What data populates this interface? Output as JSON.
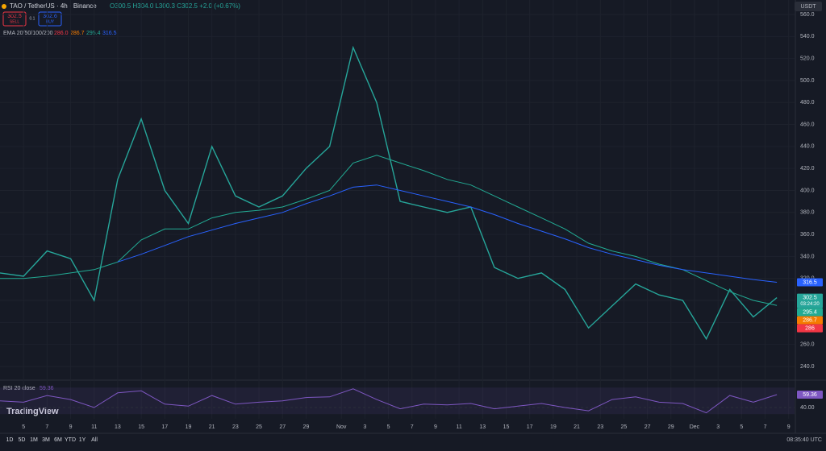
{
  "header": {
    "symbol": "TAO / TetherUS · 4h · Binance",
    "ohlc": "O300.5 H304.0 L300.3 C302.5 +2.0 (+0.67%)",
    "sell_price": "302.5",
    "sell": "SELL",
    "spread": "0.1",
    "buy_price": "302.6",
    "buy": "BUY",
    "ema_label": "EMA 20/50/100/200",
    "ema_values": [
      "286.0",
      "286.7",
      "295.4",
      "316.5"
    ],
    "currency": "USDT"
  },
  "chart_data": {
    "type": "line",
    "x": [
      0,
      2,
      4,
      6,
      8,
      10,
      12,
      14,
      16,
      18,
      20,
      22,
      24,
      26,
      28,
      30,
      32,
      34,
      36,
      38,
      40,
      42,
      44,
      46,
      48,
      50,
      52,
      54,
      56,
      58,
      60,
      62,
      64,
      66
    ],
    "series": [
      {
        "name": "TAO",
        "color": "#26a69a",
        "values": [
          325,
          322,
          345,
          338,
          300,
          410,
          465,
          400,
          370,
          440,
          395,
          385,
          395,
          420,
          440,
          530,
          480,
          390,
          385,
          380,
          385,
          330,
          320,
          325,
          310,
          275,
          295,
          315,
          305,
          300,
          265,
          310,
          285,
          302.5
        ]
      },
      {
        "name": "EMA 100",
        "color": "#22ab94",
        "values": [
          320,
          320,
          322,
          325,
          328,
          335,
          355,
          365,
          365,
          375,
          380,
          382,
          385,
          392,
          400,
          425,
          432,
          425,
          418,
          410,
          405,
          395,
          385,
          375,
          365,
          352,
          345,
          340,
          333,
          328,
          318,
          308,
          300,
          295.4
        ]
      },
      {
        "name": "EMA 200",
        "color": "#2962ff",
        "values": [
          null,
          null,
          null,
          null,
          null,
          335,
          342,
          350,
          358,
          364,
          370,
          375,
          380,
          388,
          395,
          403,
          405,
          400,
          395,
          390,
          385,
          378,
          370,
          363,
          356,
          348,
          342,
          337,
          332,
          328,
          325,
          322,
          319,
          316.5
        ]
      }
    ],
    "xlim": [
      0,
      67.5
    ],
    "xticks": [
      {
        "value": 2,
        "label": "5"
      },
      {
        "value": 4,
        "label": "7"
      },
      {
        "value": 6,
        "label": "9"
      },
      {
        "value": 8,
        "label": "11"
      },
      {
        "value": 10,
        "label": "13"
      },
      {
        "value": 12,
        "label": "15"
      },
      {
        "value": 14,
        "label": "17"
      },
      {
        "value": 16,
        "label": "19"
      },
      {
        "value": 18,
        "label": "21"
      },
      {
        "value": 20,
        "label": "23"
      },
      {
        "value": 22,
        "label": "25"
      },
      {
        "value": 24,
        "label": "27"
      },
      {
        "value": 26,
        "label": "29"
      },
      {
        "value": 29,
        "label": "Nov"
      },
      {
        "value": 31,
        "label": "3"
      },
      {
        "value": 33,
        "label": "5"
      },
      {
        "value": 35,
        "label": "7"
      },
      {
        "value": 37,
        "label": "9"
      },
      {
        "value": 39,
        "label": "11"
      },
      {
        "value": 41,
        "label": "13"
      },
      {
        "value": 43,
        "label": "15"
      },
      {
        "value": 45,
        "label": "17"
      },
      {
        "value": 47,
        "label": "19"
      },
      {
        "value": 49,
        "label": "21"
      },
      {
        "value": 51,
        "label": "23"
      },
      {
        "value": 53,
        "label": "25"
      },
      {
        "value": 55,
        "label": "27"
      },
      {
        "value": 57,
        "label": "29"
      },
      {
        "value": 59,
        "label": "Dec"
      },
      {
        "value": 61,
        "label": "3"
      },
      {
        "value": 63,
        "label": "5"
      },
      {
        "value": 65,
        "label": "7"
      },
      {
        "value": 67,
        "label": "9"
      }
    ],
    "ylim": [
      229,
      564.4
    ],
    "yticks": [
      {
        "value": 240,
        "label": "240.0"
      },
      {
        "value": 260,
        "label": "260.0"
      },
      {
        "value": 280,
        "label": "280.0"
      },
      {
        "value": 300,
        "label": "300.0"
      },
      {
        "value": 320,
        "label": "320.0"
      },
      {
        "value": 340,
        "label": "340.0"
      },
      {
        "value": 360,
        "label": "360.0"
      },
      {
        "value": 380,
        "label": "380.0"
      },
      {
        "value": 400,
        "label": "400.0"
      },
      {
        "value": 420,
        "label": "420.0"
      },
      {
        "value": 440,
        "label": "440.0"
      },
      {
        "value": 460,
        "label": "460.0"
      },
      {
        "value": 480,
        "label": "480.0"
      },
      {
        "value": 500,
        "label": "500.0"
      },
      {
        "value": 520,
        "label": "520.0"
      },
      {
        "value": 540,
        "label": "540.0"
      },
      {
        "value": 560,
        "label": "560.0"
      }
    ],
    "grid": true,
    "last_values": [
      316.5,
      302.5,
      295.4,
      286.7,
      286.0
    ],
    "last_colors": [
      "#2962ff",
      "#26a69a",
      "#22ab94",
      "#f57c00",
      "#f23645"
    ],
    "countdown": "03:24:20"
  },
  "rsi": {
    "label": "RSI 20 close",
    "value_label": "59.36",
    "color": "#7e57c2",
    "values": [
      50,
      48,
      58,
      52,
      40,
      62,
      65,
      45,
      42,
      58,
      45,
      48,
      50,
      55,
      56,
      68,
      52,
      38,
      45,
      44,
      46,
      38,
      42,
      46,
      40,
      35,
      52,
      56,
      48,
      46,
      32,
      58,
      48,
      59.36
    ],
    "ylim": [
      21.8,
      78.7
    ],
    "yticks": [
      {
        "value": 40,
        "label": "40.00"
      }
    ]
  },
  "footer": {
    "ranges": [
      "1D",
      "5D",
      "1M",
      "3M",
      "6M",
      "YTD",
      "1Y",
      "All"
    ],
    "clock": "08:35:40 UTC",
    "logo": "TradingView"
  }
}
